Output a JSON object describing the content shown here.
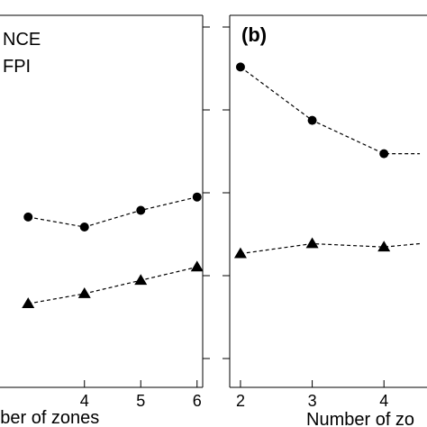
{
  "chart_data": [
    {
      "type": "line",
      "panel_label": "",
      "xlabel": "Number of zones",
      "ylabel": "",
      "x_ticks": [
        "4",
        "5",
        "6"
      ],
      "x": [
        3,
        4,
        5,
        6
      ],
      "xlim": [
        2.5,
        6.1
      ],
      "ylim": [
        0,
        1
      ],
      "legend": {
        "placement": "top-left",
        "entries": [
          "NCE",
          "FPI"
        ]
      },
      "series": [
        {
          "name": "NCE",
          "marker": "circle",
          "values": [
            0.43,
            0.4,
            0.45,
            0.49
          ]
        },
        {
          "name": "FPI",
          "marker": "triangle",
          "values": [
            0.17,
            0.2,
            0.24,
            0.28
          ]
        }
      ]
    },
    {
      "type": "line",
      "panel_label": "(b)",
      "xlabel": "Number of zo",
      "ylabel": "",
      "x_ticks": [
        "2",
        "3",
        "4"
      ],
      "x": [
        2,
        3,
        4,
        4.5
      ],
      "xlim": [
        1.85,
        4.6
      ],
      "ylim": [
        0,
        1
      ],
      "series": [
        {
          "name": "NCE",
          "marker": "circle",
          "values": [
            0.88,
            0.72,
            0.62,
            0.62
          ]
        },
        {
          "name": "FPI",
          "marker": "triangle",
          "values": [
            0.32,
            0.35,
            0.34,
            0.35
          ]
        }
      ]
    }
  ]
}
